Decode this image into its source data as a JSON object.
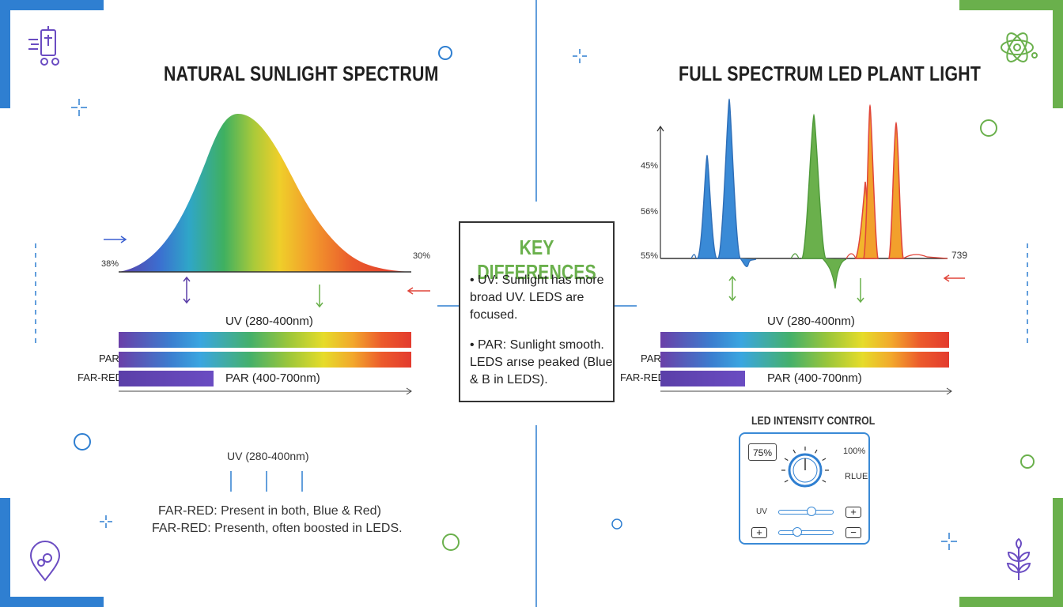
{
  "colors": {
    "blue_accent": "#2f7fd1",
    "green_accent": "#6ab04c",
    "title_text": "#1f1f1f",
    "red_arrow": "#e0453a"
  },
  "left": {
    "title": "NATURAL SUNLIGHT SPECTRUM",
    "left_axis_value": "38%",
    "right_axis_value": "30%",
    "band_uv_label": "UV (280-400nm)",
    "band_par_label": "PAR",
    "band_farred_label": "FAR-RED",
    "band_par_range_label": "PAR (400-700nm)",
    "lower_uv_label": "UV (280-400nm)",
    "note_1": "FAR-RED: Present in both, Blue & Red)",
    "note_2": "FAR-RED: Presenth, often boosted in LEDS."
  },
  "key": {
    "title": "KEY DIFFERENCES",
    "item_1": "• UV: Sunlight has more broad UV. LEDS are focused.",
    "item_2": "• PAR: Sunlight smooth. LEDS arıse peaked (Blue & B in LEDS)."
  },
  "right": {
    "title": "FULL SPECTRUM LED PLANT LIGHT",
    "y_labels": [
      "45%",
      "56%",
      "55%"
    ],
    "right_axis_value": "739",
    "band_uv_label": "UV (280-400nm)",
    "band_par_label": "PAR",
    "band_farred_label": "FAR-RED",
    "band_par_range_label": "PAR (400-700nm)"
  },
  "control": {
    "title": "LED INTENSITY CONTROL",
    "value": "75%",
    "max_label": "100%",
    "channel_label": "RLUE",
    "uv_label": "UV",
    "plus": "+",
    "minus": "−",
    "uv_slider_level": 0.6,
    "second_slider_level": 0.3
  },
  "icons": [
    "lab-apparatus-icon",
    "atom-icon",
    "location-pin-icon",
    "plant-sprout-icon"
  ]
}
